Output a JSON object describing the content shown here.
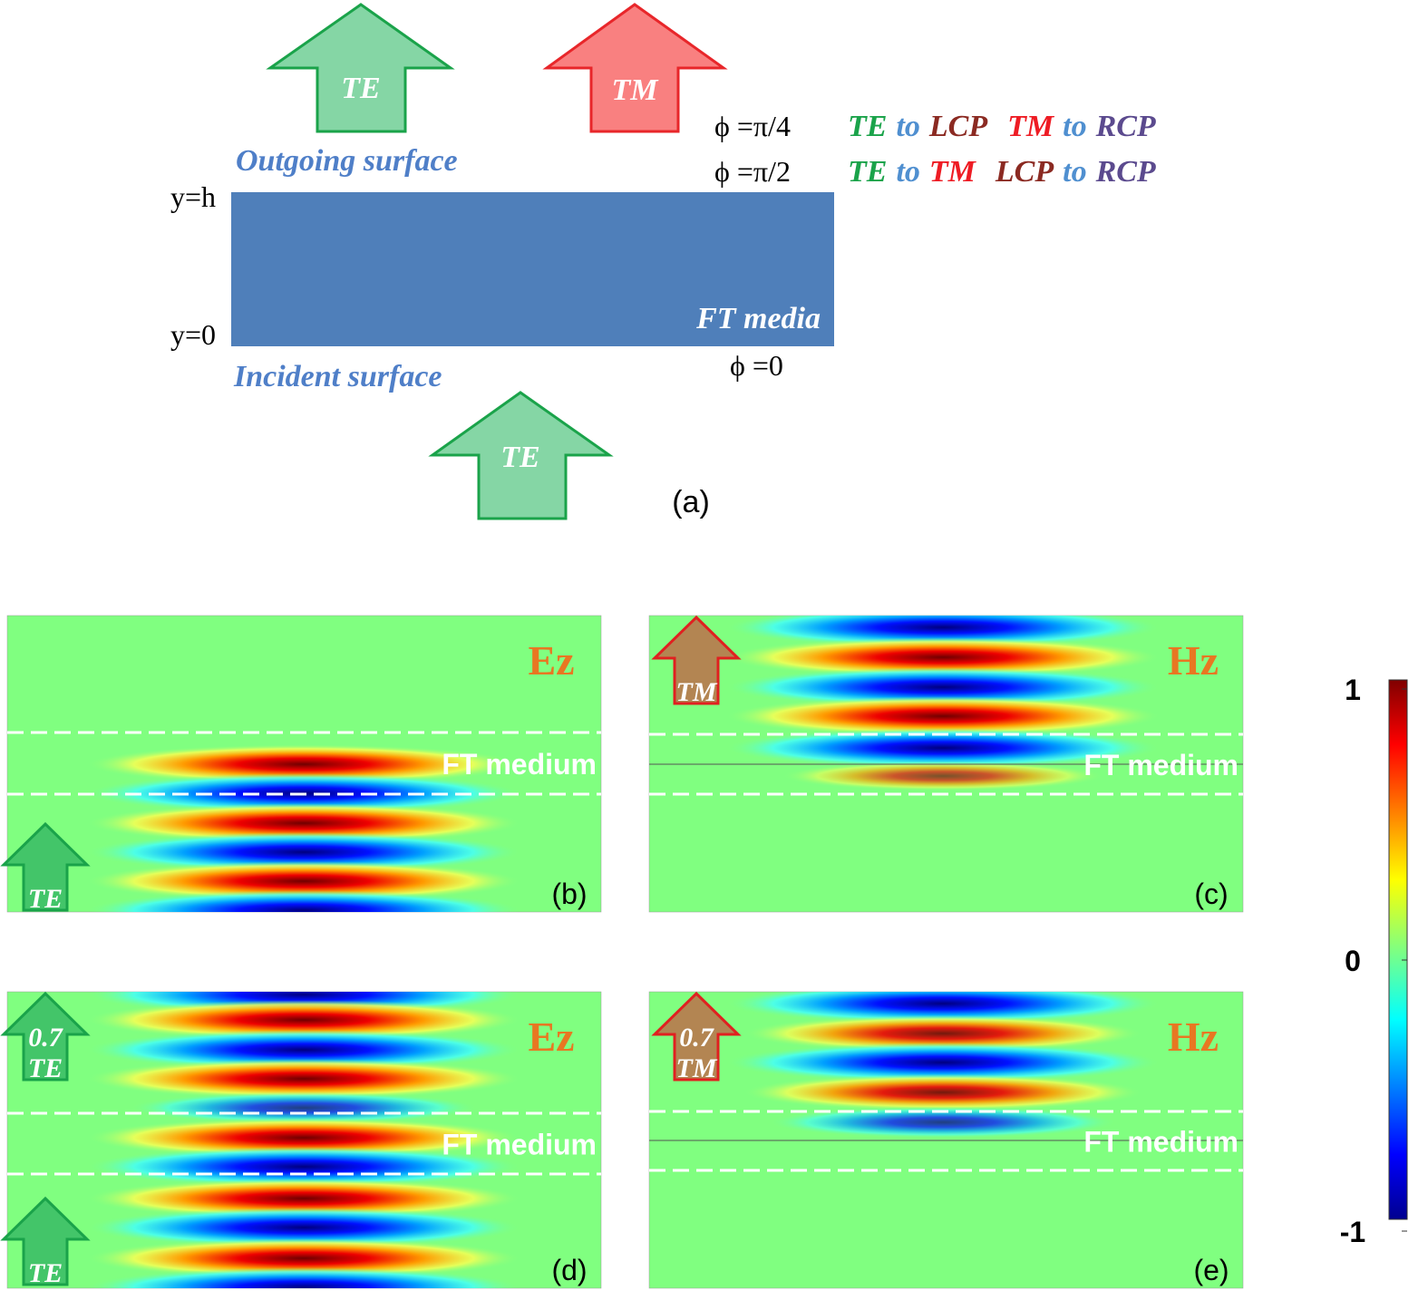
{
  "panel_a": {
    "label": "(a)",
    "top_te": "TE",
    "top_tm": "TM",
    "bottom_te": "TE",
    "outgoing": "Outgoing surface",
    "incident": "Incident surface",
    "y_h": "y=h",
    "y_0": "y=0",
    "media": "FT media",
    "phi0": "ϕ =0",
    "rows": [
      {
        "phi": "ϕ =π/4",
        "parts": [
          {
            "text": "TE",
            "color": "#1aa34a"
          },
          {
            "text": "to",
            "color": "#4f8fd0"
          },
          {
            "text": "LCP",
            "color": "#8b2a22"
          },
          {
            "text": "TM",
            "color": "#ee1c24"
          },
          {
            "text": "to",
            "color": "#4f8fd0"
          },
          {
            "text": "RCP",
            "color": "#5b4a8e"
          }
        ]
      },
      {
        "phi": "ϕ =π/2",
        "parts": [
          {
            "text": "TE",
            "color": "#1aa34a"
          },
          {
            "text": "to",
            "color": "#4f8fd0"
          },
          {
            "text": "TM",
            "color": "#ee1c24"
          },
          {
            "text": "LCP",
            "color": "#8b2a22"
          },
          {
            "text": "to",
            "color": "#4f8fd0"
          },
          {
            "text": "RCP",
            "color": "#5b4a8e"
          }
        ]
      }
    ]
  },
  "panels": [
    {
      "label": "(b)",
      "field": "Ez",
      "medium": "FT medium",
      "arrow": [
        "TE"
      ]
    },
    {
      "label": "(c)",
      "field": "Hz",
      "medium": "FT medium",
      "arrow": [
        "TM"
      ]
    },
    {
      "label": "(d)",
      "field": "Ez",
      "medium": "FT medium",
      "arrow": [
        "0.7",
        "TE"
      ],
      "arrow2": [
        "TE"
      ]
    },
    {
      "label": "(e)",
      "field": "Hz",
      "medium": "FT medium",
      "arrow": [
        "0.7",
        "TM"
      ]
    }
  ],
  "colorbar": {
    "ticks": [
      1,
      0,
      -1
    ]
  }
}
